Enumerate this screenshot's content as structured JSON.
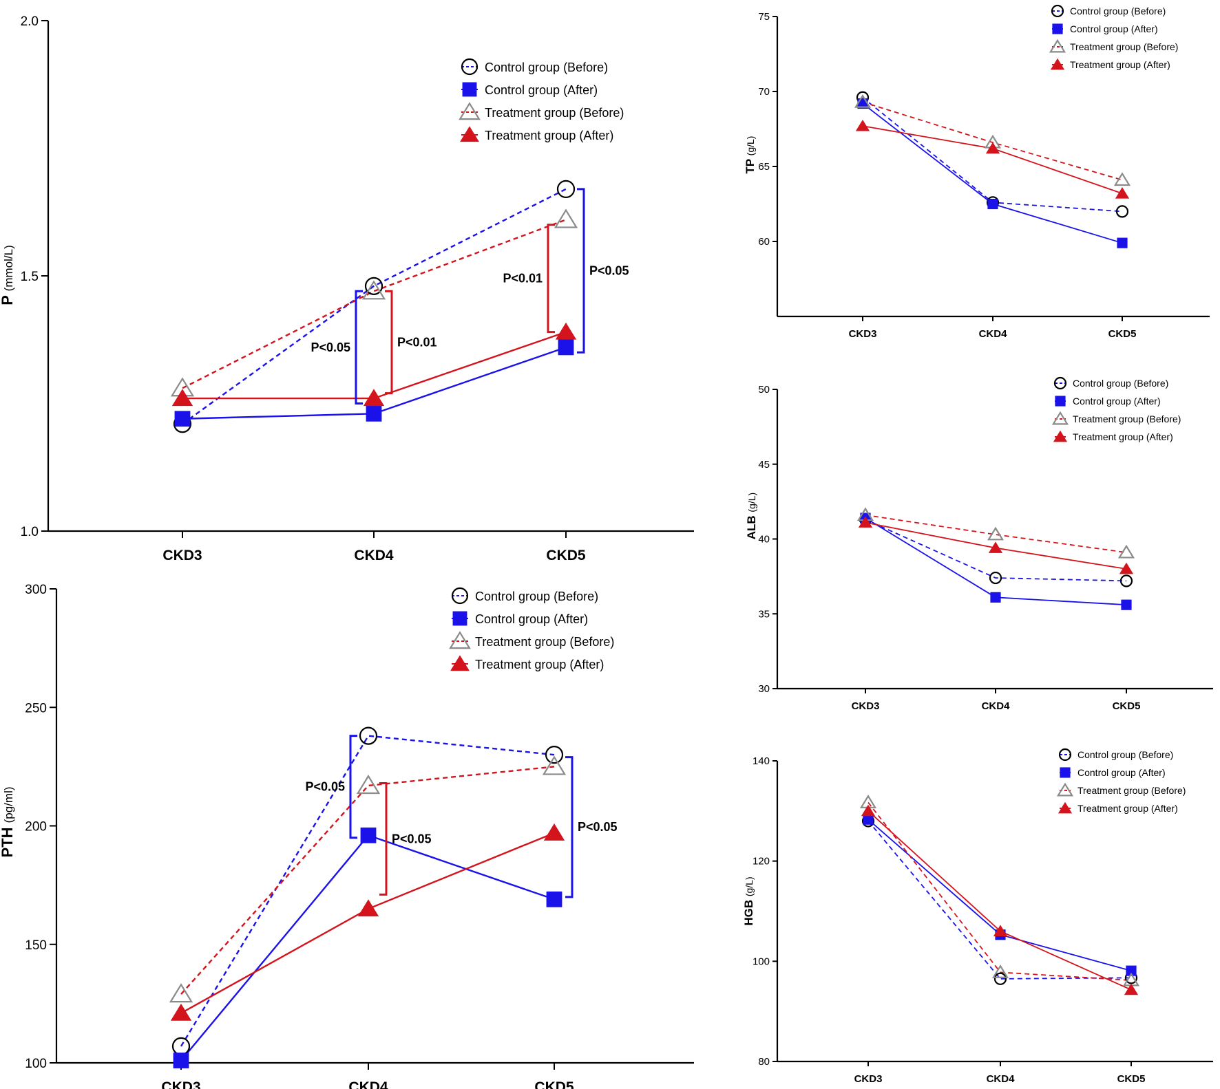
{
  "colors": {
    "control": "#1a12e8",
    "treatment": "#d4141c",
    "treatment_before_marker": "#8a8a8a",
    "axis": "#000000"
  },
  "legend": [
    {
      "label": "Control group (Before)",
      "marker": "open-circle",
      "line": "dashed",
      "color": "#1a12e8"
    },
    {
      "label": "Control group (After)",
      "marker": "filled-square",
      "line": "solid",
      "color": "#1a12e8"
    },
    {
      "label": "Treatment group (Before)",
      "marker": "open-triangle",
      "line": "dashed",
      "color": "#d4141c"
    },
    {
      "label": "Treatment group (After)",
      "marker": "filled-triangle",
      "line": "solid",
      "color": "#d4141c"
    }
  ],
  "chart_data": [
    {
      "id": "P",
      "type": "line",
      "ylabel_main": "P",
      "ylabel_unit": "(mmol/L)",
      "categories": [
        "CKD3",
        "CKD4",
        "CKD5"
      ],
      "yticks": [
        "1.0",
        "1.5",
        "2.0"
      ],
      "ylim": [
        1.0,
        2.0
      ],
      "series": [
        {
          "name": "Control group (Before)",
          "values": [
            1.21,
            1.48,
            1.67
          ]
        },
        {
          "name": "Control group (After)",
          "values": [
            1.22,
            1.23,
            1.36
          ]
        },
        {
          "name": "Treatment group (Before)",
          "values": [
            1.28,
            1.47,
            1.61
          ]
        },
        {
          "name": "Treatment group (After)",
          "values": [
            1.26,
            1.26,
            1.39
          ]
        }
      ],
      "annotations": [
        {
          "text": "P<0.05",
          "category": 1,
          "from": 1.47,
          "to": 1.25,
          "side": "left",
          "color": "#1a12e8"
        },
        {
          "text": "P<0.01",
          "category": 1,
          "from": 1.47,
          "to": 1.27,
          "side": "right",
          "color": "#d4141c"
        },
        {
          "text": "P<0.01",
          "category": 2,
          "from": 1.6,
          "to": 1.39,
          "side": "left",
          "color": "#d4141c"
        },
        {
          "text": "P<0.05",
          "category": 2,
          "from": 1.67,
          "to": 1.35,
          "side": "right",
          "color": "#1a12e8"
        }
      ]
    },
    {
      "id": "PTH",
      "type": "line",
      "ylabel_main": "PTH",
      "ylabel_unit": "(pg/ml)",
      "categories": [
        "CKD3",
        "CKD4",
        "CKD5"
      ],
      "yticks": [
        "100",
        "150",
        "200",
        "250",
        "300"
      ],
      "ylim": [
        100,
        300
      ],
      "series": [
        {
          "name": "Control group (Before)",
          "values": [
            107,
            238,
            230
          ]
        },
        {
          "name": "Control group (After)",
          "values": [
            101,
            196,
            169
          ]
        },
        {
          "name": "Treatment group (Before)",
          "values": [
            129,
            217,
            225
          ]
        },
        {
          "name": "Treatment group (After)",
          "values": [
            121,
            165,
            197
          ]
        }
      ],
      "annotations": [
        {
          "text": "P<0.05",
          "category": 1,
          "from": 238,
          "to": 195,
          "side": "left",
          "color": "#1a12e8"
        },
        {
          "text": "P<0.05",
          "category": 1,
          "from": 218,
          "to": 171,
          "side": "right",
          "color": "#d4141c"
        },
        {
          "text": "P<0.05",
          "category": 2,
          "from": 229,
          "to": 170,
          "side": "right",
          "color": "#1a12e8"
        }
      ]
    },
    {
      "id": "TP",
      "type": "line",
      "ylabel_main": "TP",
      "ylabel_unit": "(g/L)",
      "categories": [
        "CKD3",
        "CKD4",
        "CKD5"
      ],
      "yticks": [
        "60",
        "65",
        "70",
        "75"
      ],
      "ylim": [
        55,
        75
      ],
      "series": [
        {
          "name": "Control group (Before)",
          "values": [
            69.6,
            62.6,
            62.0
          ]
        },
        {
          "name": "Control group (After)",
          "values": [
            69.2,
            62.5,
            59.9
          ]
        },
        {
          "name": "Treatment group (Before)",
          "values": [
            69.3,
            66.6,
            64.1
          ]
        },
        {
          "name": "Treatment group (After)",
          "values": [
            67.7,
            66.2,
            63.2
          ]
        }
      ],
      "annotations": []
    },
    {
      "id": "ALB",
      "type": "line",
      "ylabel_main": "ALB",
      "ylabel_unit": "(g/L)",
      "categories": [
        "CKD3",
        "CKD4",
        "CKD5"
      ],
      "yticks": [
        "30",
        "35",
        "40",
        "45",
        "50"
      ],
      "ylim": [
        30,
        50
      ],
      "series": [
        {
          "name": "Control group (Before)",
          "values": [
            41.3,
            37.4,
            37.2
          ]
        },
        {
          "name": "Control group (After)",
          "values": [
            41.4,
            36.1,
            35.6
          ]
        },
        {
          "name": "Treatment group (Before)",
          "values": [
            41.6,
            40.3,
            39.1
          ]
        },
        {
          "name": "Treatment group (After)",
          "values": [
            41.1,
            39.4,
            38.0
          ]
        }
      ],
      "annotations": []
    },
    {
      "id": "HGB",
      "type": "line",
      "ylabel_main": "HGB",
      "ylabel_unit": "(g/L)",
      "categories": [
        "CKD3",
        "CKD4",
        "CKD5"
      ],
      "yticks": [
        "80",
        "100",
        "120",
        "140"
      ],
      "ylim": [
        80,
        140
      ],
      "series": [
        {
          "name": "Control group (Before)",
          "values": [
            128,
            96.5,
            96.7
          ]
        },
        {
          "name": "Control group (After)",
          "values": [
            128.3,
            105.3,
            98.1
          ]
        },
        {
          "name": "Treatment group (Before)",
          "values": [
            131.7,
            97.8,
            96.2
          ]
        },
        {
          "name": "Treatment group (After)",
          "values": [
            130,
            106,
            94.3
          ]
        }
      ],
      "annotations": []
    }
  ]
}
